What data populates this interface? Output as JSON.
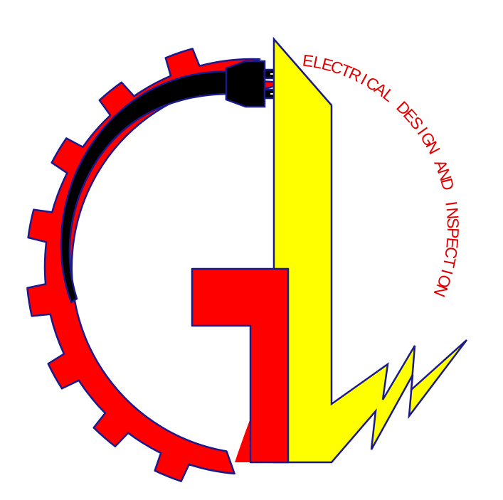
{
  "logo": {
    "tagline": "ELECTRICAL DESIGN AND INSPECTION",
    "monogram": "GL"
  },
  "colors": {
    "gear_red": "#ff0000",
    "outline_navy": "#1a1a8c",
    "bolt_yellow": "#ffff00",
    "cord_black": "#000000",
    "tagline_red": "#e00000",
    "background": "#ffffff"
  },
  "icons": {
    "gear": "gear-ring-icon",
    "plug": "electric-plug-icon",
    "bolt": "lightning-bolt-icon"
  }
}
